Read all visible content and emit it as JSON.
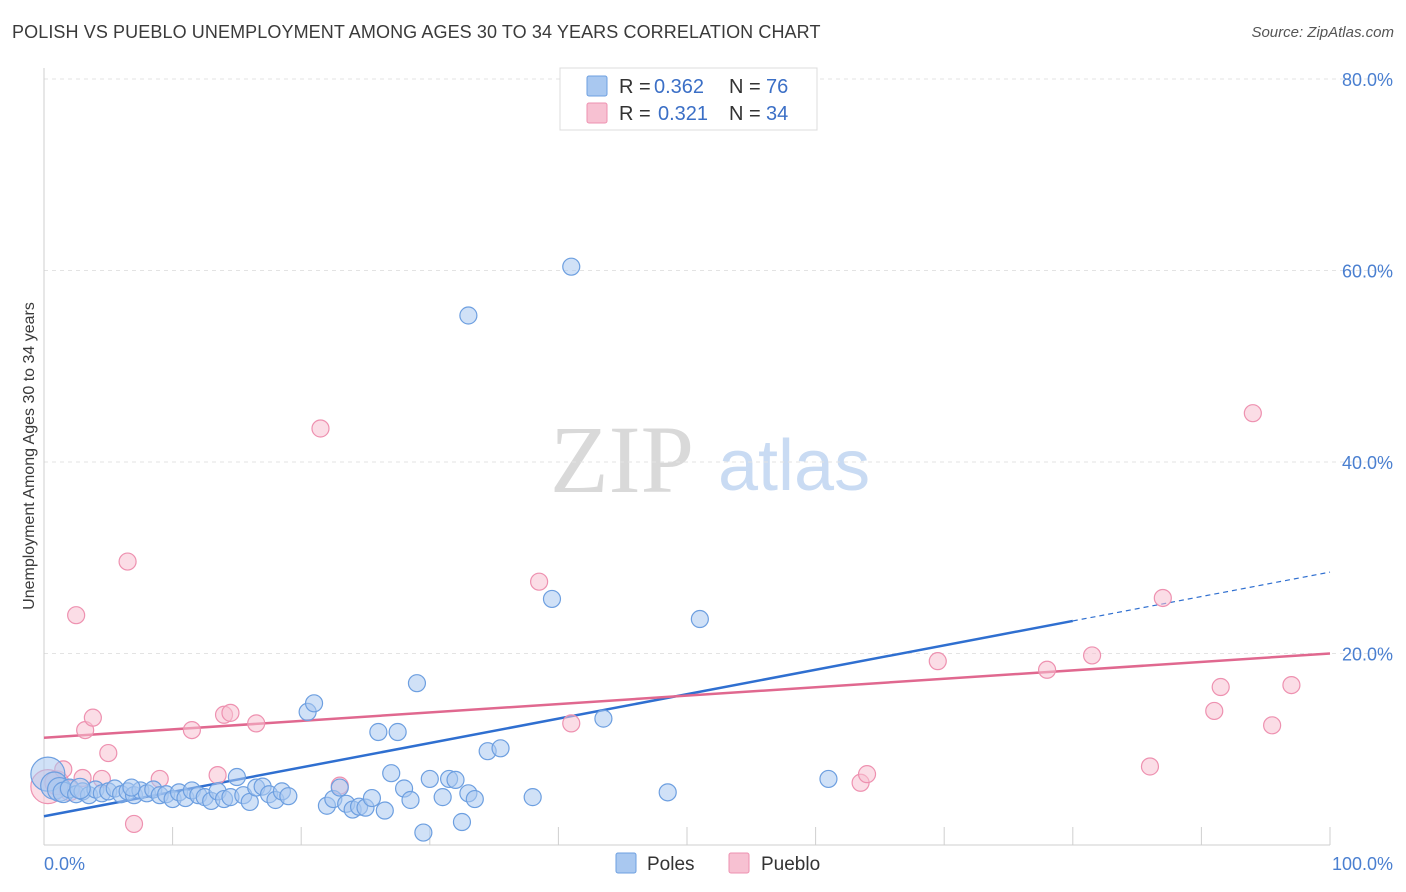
{
  "header": {
    "title": "POLISH VS PUEBLO UNEMPLOYMENT AMONG AGES 30 TO 34 YEARS CORRELATION CHART",
    "source": "Source: ZipAtlas.com"
  },
  "watermark": {
    "zip": "ZIP",
    "atlas": "atlas"
  },
  "legend": {
    "r_label": "R =",
    "n_label": "N =",
    "entries": [
      {
        "name": "Poles",
        "r": "0.362",
        "n": "76",
        "color": "#7aaae8"
      },
      {
        "name": "Pueblo",
        "r": "0.321",
        "n": "34",
        "color": "#f29cb8"
      }
    ]
  },
  "colors": {
    "poles_fill": "#a9c8f0",
    "poles_stroke": "#6d9fe0",
    "poles_line": "#2f6fd0",
    "pueblo_fill": "#f7c1d2",
    "pueblo_stroke": "#ee91b0",
    "pueblo_line": "#e0688f",
    "grid": "#e3e3e3",
    "axis_text": "#4a7fd0"
  },
  "chart_data": {
    "type": "scatter",
    "title": "POLISH VS PUEBLO UNEMPLOYMENT AMONG AGES 30 TO 34 YEARS CORRELATION CHART",
    "xlabel": "",
    "ylabel": "Unemployment Among Ages 30 to 34 years",
    "xlim": [
      0,
      100
    ],
    "ylim": [
      0,
      80
    ],
    "x_tick_labels": [
      "0.0%",
      "100.0%"
    ],
    "y_ticks": [
      20,
      40,
      60,
      80
    ],
    "y_tick_labels": [
      "20.0%",
      "40.0%",
      "60.0%",
      "80.0%"
    ],
    "grid": true,
    "series": [
      {
        "name": "Poles",
        "r": 0.362,
        "n": 76,
        "trend": {
          "x0": 0,
          "y0": 3.0,
          "x1": 80,
          "y1": 23.4,
          "dashed_to_x": 100,
          "dashed_to_y": 28.5
        },
        "points": [
          [
            0.3,
            7.4,
            2
          ],
          [
            0.8,
            6.2,
            1.6
          ],
          [
            1.2,
            5.8,
            1.4
          ],
          [
            1.5,
            5.5,
            1.2
          ],
          [
            2.0,
            5.9,
            1.1
          ],
          [
            2.5,
            5.3,
            1
          ],
          [
            3.0,
            5.6,
            1
          ],
          [
            3.5,
            5.2,
            1
          ],
          [
            4.0,
            5.8,
            1
          ],
          [
            4.5,
            5.4,
            1
          ],
          [
            5.0,
            5.6,
            1
          ],
          [
            5.5,
            5.9,
            1
          ],
          [
            6.0,
            5.3,
            1
          ],
          [
            6.5,
            5.6,
            1
          ],
          [
            7.0,
            5.2,
            1
          ],
          [
            7.5,
            5.7,
            1
          ],
          [
            8.0,
            5.4,
            1
          ],
          [
            8.5,
            5.8,
            1
          ],
          [
            9.0,
            5.2,
            1
          ],
          [
            9.5,
            5.3,
            1
          ],
          [
            10.0,
            4.8,
            1
          ],
          [
            10.5,
            5.5,
            1
          ],
          [
            11.0,
            4.9,
            1
          ],
          [
            11.5,
            5.7,
            1
          ],
          [
            12.0,
            5.2,
            1
          ],
          [
            12.5,
            5.0,
            1
          ],
          [
            13.0,
            4.6,
            1
          ],
          [
            13.5,
            5.6,
            1
          ],
          [
            14.0,
            4.8,
            1
          ],
          [
            14.5,
            5.0,
            1
          ],
          [
            15.0,
            7.1,
            1
          ],
          [
            15.5,
            5.2,
            1
          ],
          [
            16.0,
            4.5,
            1
          ],
          [
            16.5,
            6.0,
            1
          ],
          [
            17.0,
            6.1,
            1
          ],
          [
            17.5,
            5.3,
            1
          ],
          [
            18.0,
            4.7,
            1
          ],
          [
            18.5,
            5.6,
            1
          ],
          [
            19.0,
            5.1,
            1
          ],
          [
            20.5,
            13.9,
            1
          ],
          [
            21.0,
            14.8,
            1
          ],
          [
            22.0,
            4.1,
            1
          ],
          [
            22.5,
            4.8,
            1
          ],
          [
            23.0,
            6.0,
            1
          ],
          [
            23.5,
            4.3,
            1
          ],
          [
            24.0,
            3.7,
            1
          ],
          [
            24.5,
            4.0,
            1
          ],
          [
            25.0,
            3.9,
            1
          ],
          [
            25.5,
            4.9,
            1
          ],
          [
            26.0,
            11.8,
            1
          ],
          [
            26.5,
            3.6,
            1
          ],
          [
            27.0,
            7.5,
            1
          ],
          [
            27.5,
            11.8,
            1
          ],
          [
            28.0,
            5.9,
            1
          ],
          [
            28.5,
            4.7,
            1
          ],
          [
            29.0,
            16.9,
            1
          ],
          [
            29.5,
            1.3,
            1
          ],
          [
            30.0,
            6.9,
            1
          ],
          [
            31.0,
            5.0,
            1
          ],
          [
            31.5,
            6.9,
            1
          ],
          [
            32.0,
            6.8,
            1
          ],
          [
            32.5,
            2.4,
            1
          ],
          [
            33.0,
            5.4,
            1
          ],
          [
            33.5,
            4.8,
            1
          ],
          [
            34.5,
            9.8,
            1
          ],
          [
            35.5,
            10.1,
            1
          ],
          [
            38.0,
            5.0,
            1
          ],
          [
            39.5,
            25.7,
            1
          ],
          [
            43.5,
            13.2,
            1
          ],
          [
            48.5,
            5.5,
            1
          ],
          [
            51.0,
            23.6,
            1
          ],
          [
            61.0,
            6.9,
            1
          ],
          [
            33.0,
            55.3,
            1
          ],
          [
            41.0,
            60.4,
            1
          ],
          [
            2.8,
            5.9,
            1.2
          ],
          [
            6.8,
            6.0,
            1
          ]
        ]
      },
      {
        "name": "Pueblo",
        "r": 0.321,
        "n": 34,
        "trend": {
          "x0": 0,
          "y0": 11.2,
          "x1": 100,
          "y1": 20.0
        },
        "points": [
          [
            0.3,
            6.1,
            2
          ],
          [
            1.0,
            6.5,
            1.4
          ],
          [
            2.0,
            5.7,
            1.2
          ],
          [
            2.5,
            24.0,
            1
          ],
          [
            3.0,
            7.0,
            1
          ],
          [
            3.2,
            12.0,
            1
          ],
          [
            3.8,
            13.3,
            1
          ],
          [
            4.5,
            6.9,
            1
          ],
          [
            5.0,
            9.6,
            1
          ],
          [
            6.5,
            29.6,
            1
          ],
          [
            7.0,
            2.2,
            1
          ],
          [
            9.0,
            6.9,
            1
          ],
          [
            11.5,
            12.0,
            1
          ],
          [
            13.5,
            7.3,
            1
          ],
          [
            14.0,
            13.6,
            1
          ],
          [
            14.5,
            13.8,
            1
          ],
          [
            16.5,
            12.7,
            1
          ],
          [
            21.5,
            43.5,
            1
          ],
          [
            23.0,
            6.2,
            1
          ],
          [
            38.5,
            27.5,
            1
          ],
          [
            41.0,
            12.7,
            1
          ],
          [
            63.5,
            6.5,
            1
          ],
          [
            64.0,
            7.4,
            1
          ],
          [
            69.5,
            19.2,
            1
          ],
          [
            78.0,
            18.3,
            1
          ],
          [
            81.5,
            19.8,
            1
          ],
          [
            86.0,
            8.2,
            1
          ],
          [
            87.0,
            25.8,
            1
          ],
          [
            91.0,
            14.0,
            1
          ],
          [
            91.5,
            16.5,
            1
          ],
          [
            94.0,
            45.1,
            1
          ],
          [
            95.5,
            12.5,
            1
          ],
          [
            97.0,
            16.7,
            1
          ],
          [
            1.5,
            7.9,
            1
          ]
        ]
      }
    ]
  }
}
